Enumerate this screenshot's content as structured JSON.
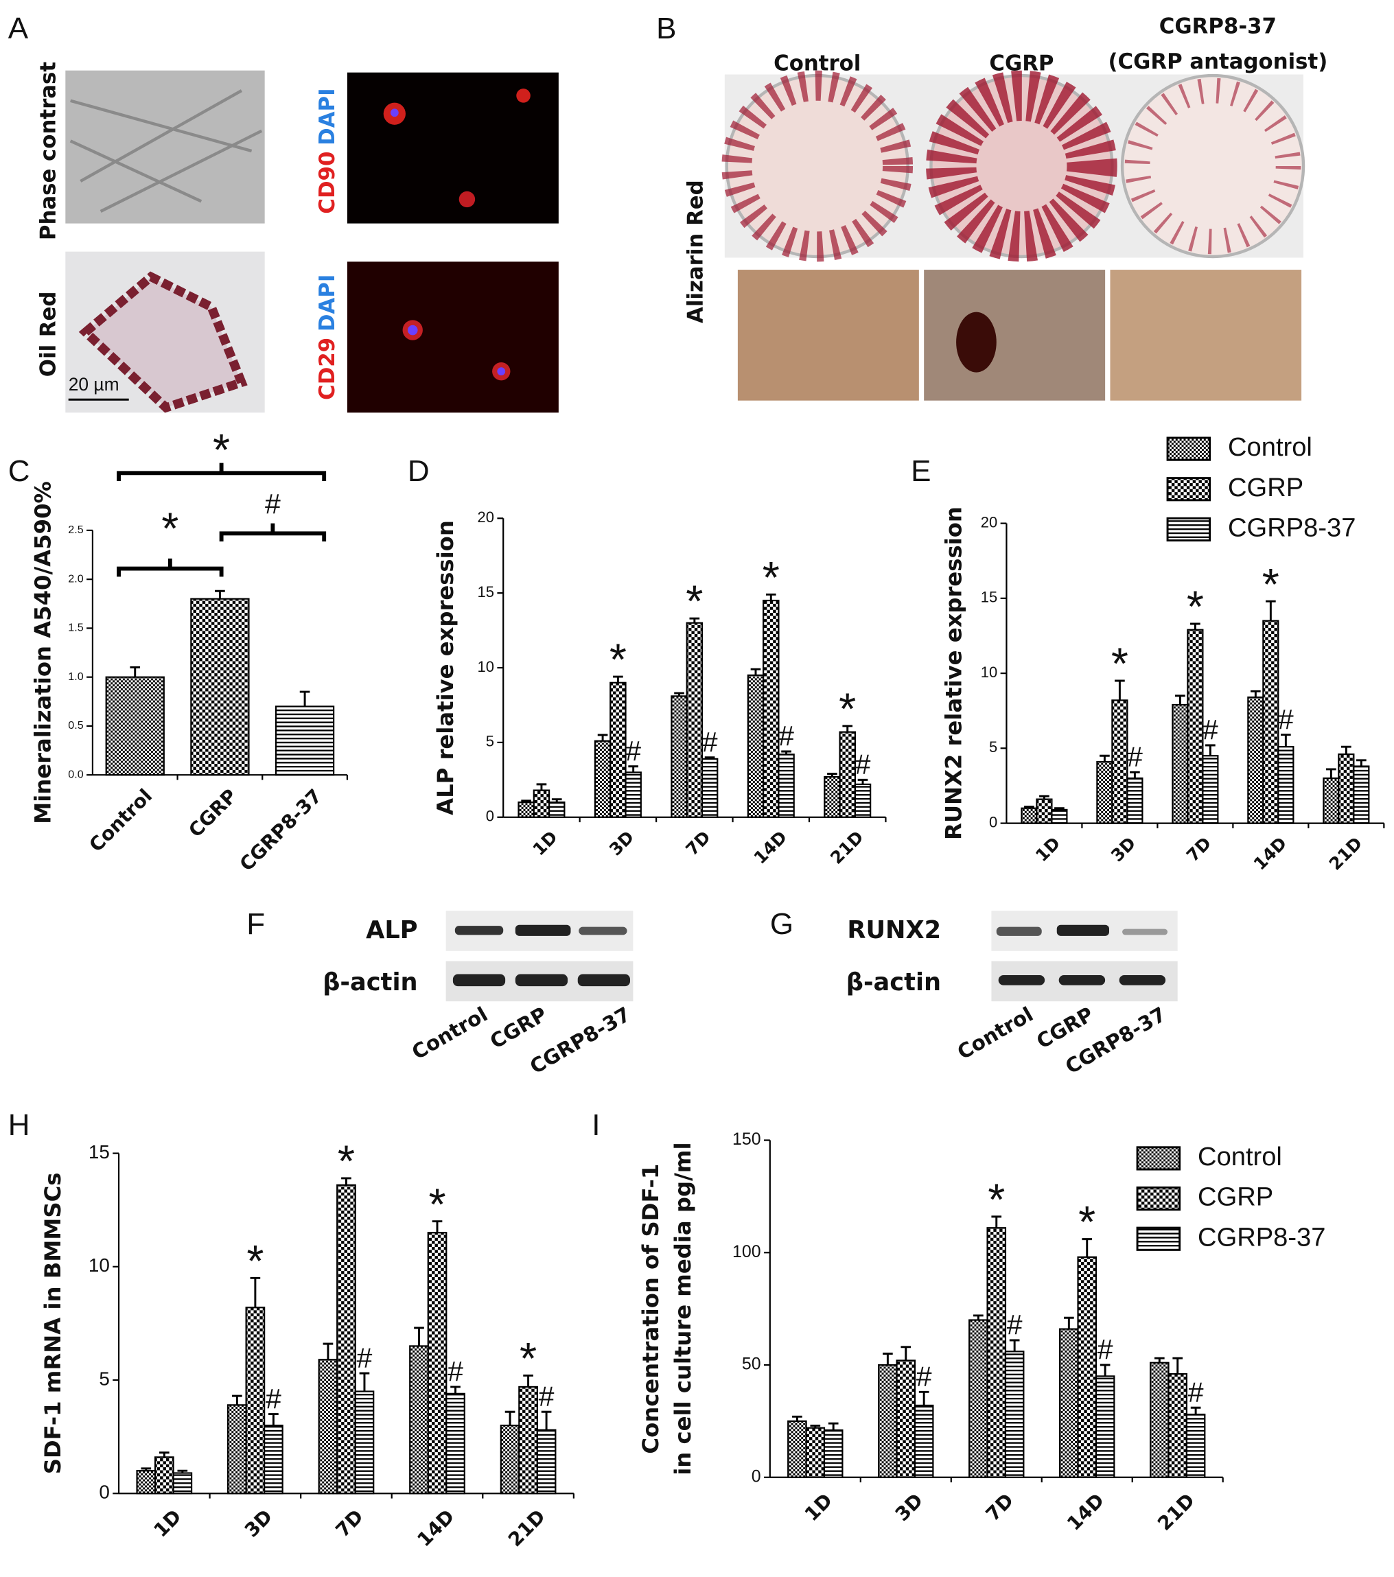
{
  "figure": {
    "A": {
      "label": "A",
      "phase": "Phase contrast",
      "oil": "Oil Red",
      "scale": "20 µm",
      "cd90": "CD90",
      "dapi1": "DAPI",
      "cd29": "CD29",
      "dapi2": "DAPI"
    },
    "B": {
      "label": "B",
      "control": "Control",
      "cgrp": "CGRP",
      "antag": "CGRP8-37",
      "antag_note": "(CGRP antagonist)",
      "stain": "Alizarin Red"
    },
    "F": {
      "label": "F",
      "protein": "ALP",
      "loading": "β-actin",
      "lanes": [
        "Control",
        "CGRP",
        "CGRP8-37"
      ]
    },
    "G": {
      "label": "G",
      "protein": "RUNX2",
      "loading": "β-actin",
      "lanes": [
        "Control",
        "CGRP",
        "CGRP8-37"
      ]
    }
  },
  "chart_data": [
    {
      "type": "bar",
      "panel": "C",
      "ylabel": "Mineralization A540/A590%",
      "categories": [
        "Control",
        "CGRP",
        "CGRP8-37"
      ],
      "values": [
        1.0,
        1.8,
        0.7
      ],
      "errors": [
        0.1,
        0.08,
        0.15
      ],
      "patterns": [
        "checker-fine",
        "checker",
        "hlines"
      ],
      "color": "#000000",
      "ylim": [
        0,
        2.5
      ],
      "yticks": [
        {
          "value": 0,
          "label": "0.0"
        },
        {
          "value": 0.5,
          "label": "0.5"
        },
        {
          "value": 1,
          "label": "1.0"
        },
        {
          "value": 1.5,
          "label": "1.5"
        },
        {
          "value": 2,
          "label": "2.0"
        },
        {
          "value": 2.5,
          "label": "2.5"
        }
      ],
      "comparisons": [
        "*",
        "*",
        "#"
      ]
    },
    {
      "type": "grouped-bar",
      "panel": "D",
      "ylabel": "ALP relative expression",
      "categories": [
        "1D",
        "3D",
        "7D",
        "14D",
        "21D"
      ],
      "ylim": [
        0,
        20
      ],
      "yticks": [
        0,
        5,
        10,
        15,
        20
      ],
      "series": [
        {
          "color": "#000000",
          "pattern": "checker-fine",
          "values": [
            1.0,
            5.1,
            8.1,
            9.5,
            2.7
          ],
          "errors": [
            0.1,
            0.4,
            0.2,
            0.4,
            0.2
          ]
        },
        {
          "color": "#000000",
          "pattern": "checker",
          "values": [
            1.8,
            9.0,
            13.0,
            14.5,
            5.7
          ],
          "errors": [
            0.4,
            0.4,
            0.3,
            0.4,
            0.4
          ],
          "annotations": [
            null,
            "*",
            "*",
            "*",
            "*"
          ]
        },
        {
          "color": "#000000",
          "pattern": "hlines",
          "values": [
            1.0,
            3.0,
            3.9,
            4.2,
            2.2
          ],
          "errors": [
            0.2,
            0.4,
            0.1,
            0.2,
            0.3
          ],
          "annotations": [
            null,
            "#",
            "#",
            "#",
            "#"
          ]
        }
      ]
    },
    {
      "type": "grouped-bar",
      "panel": "E",
      "ylabel": "RUNX2 relative expression",
      "categories": [
        "1D",
        "3D",
        "7D",
        "14D",
        "21D"
      ],
      "ylim": [
        0,
        20
      ],
      "yticks": [
        0,
        5,
        10,
        15,
        20
      ],
      "legend": "upper-right",
      "series": [
        {
          "name": "Control",
          "color": "#000000",
          "pattern": "checker-fine",
          "values": [
            1.0,
            4.1,
            7.9,
            8.4,
            3.0
          ],
          "errors": [
            0.1,
            0.4,
            0.6,
            0.4,
            0.6
          ]
        },
        {
          "name": "CGRP",
          "color": "#000000",
          "pattern": "checker",
          "values": [
            1.6,
            8.2,
            12.9,
            13.5,
            4.6
          ],
          "errors": [
            0.2,
            1.3,
            0.4,
            1.3,
            0.5
          ],
          "annotations": [
            null,
            "*",
            "*",
            "*",
            null
          ]
        },
        {
          "name": "CGRP8-37",
          "color": "#000000",
          "pattern": "hlines",
          "values": [
            0.9,
            3.0,
            4.5,
            5.1,
            3.8
          ],
          "errors": [
            0.1,
            0.4,
            0.7,
            0.8,
            0.4
          ],
          "annotations": [
            null,
            "#",
            "#",
            "#",
            null
          ]
        }
      ]
    },
    {
      "type": "grouped-bar",
      "panel": "H",
      "ylabel": "SDF-1 mRNA in BMMSCs",
      "categories": [
        "1D",
        "3D",
        "7D",
        "14D",
        "21D"
      ],
      "ylim": [
        0,
        15
      ],
      "yticks": [
        0,
        5,
        10,
        15
      ],
      "series": [
        {
          "color": "#000000",
          "pattern": "checker-fine",
          "values": [
            1.0,
            3.9,
            5.9,
            6.5,
            3.0
          ],
          "errors": [
            0.1,
            0.4,
            0.7,
            0.8,
            0.6
          ]
        },
        {
          "color": "#000000",
          "pattern": "checker",
          "values": [
            1.6,
            8.2,
            13.6,
            11.5,
            4.7
          ],
          "errors": [
            0.2,
            1.3,
            0.3,
            0.5,
            0.5
          ],
          "annotations": [
            null,
            "*",
            "*",
            "*",
            "*"
          ]
        },
        {
          "color": "#000000",
          "pattern": "hlines",
          "values": [
            0.9,
            3.0,
            4.5,
            4.4,
            2.8
          ],
          "errors": [
            0.1,
            0.5,
            0.8,
            0.3,
            0.8
          ],
          "annotations": [
            null,
            "#",
            "#",
            "#",
            "#"
          ]
        }
      ]
    },
    {
      "type": "grouped-bar",
      "panel": "I",
      "ylabel": [
        "Concentration of SDF-1",
        "in cell culture media pg/ml"
      ],
      "categories": [
        "1D",
        "3D",
        "7D",
        "14D",
        "21D"
      ],
      "ylim": [
        0,
        150
      ],
      "yticks": [
        0,
        50,
        100,
        150
      ],
      "legend": "upper-right",
      "series": [
        {
          "name": "Control",
          "color": "#000000",
          "pattern": "checker-fine",
          "values": [
            25,
            50,
            70,
            66,
            51
          ],
          "errors": [
            2,
            5,
            2,
            5,
            2
          ]
        },
        {
          "name": "CGRP",
          "color": "#000000",
          "pattern": "checker",
          "values": [
            22,
            52,
            111,
            98,
            46
          ],
          "errors": [
            1,
            6,
            5,
            8,
            7
          ],
          "annotations": [
            null,
            null,
            "*",
            "*",
            null
          ]
        },
        {
          "name": "CGRP8-37",
          "color": "#000000",
          "pattern": "hlines",
          "values": [
            21,
            32,
            56,
            45,
            28
          ],
          "errors": [
            3,
            6,
            5,
            5,
            3
          ],
          "annotations": [
            null,
            "#",
            "#",
            "#",
            "#"
          ]
        }
      ]
    }
  ]
}
